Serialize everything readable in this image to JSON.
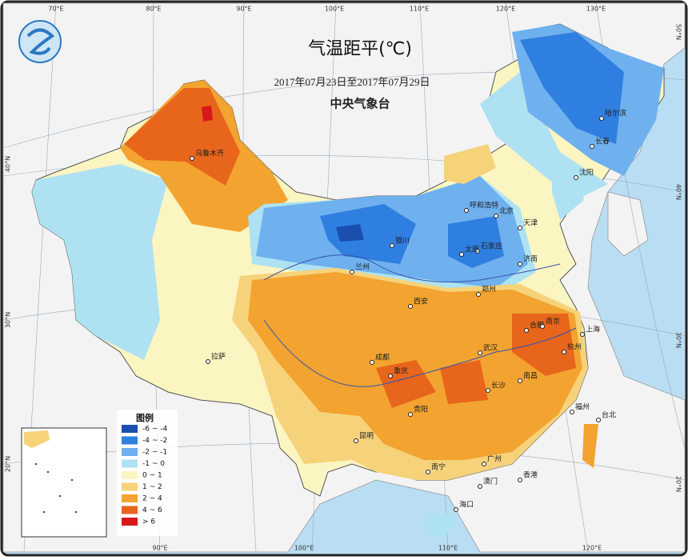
{
  "title": "气温距平(℃)",
  "date_range": "2017年07月23日至2017年07月29日",
  "source": "中央气象台",
  "legend": {
    "title": "图例",
    "items": [
      {
        "label": "-6 ~ -4",
        "color": "#1a4fb0"
      },
      {
        "label": "-4 ~ -2",
        "color": "#2f7fe0"
      },
      {
        "label": "-2 ~ -1",
        "color": "#6fb0ee"
      },
      {
        "label": "-1 ~ 0",
        "color": "#aee2f2"
      },
      {
        "label": "0 ~ 1",
        "color": "#fbf5c2"
      },
      {
        "label": "1 ~ 2",
        "color": "#f6d27a"
      },
      {
        "label": "2 ~ 4",
        "color": "#f2a330"
      },
      {
        "label": "4 ~ 6",
        "color": "#e8651c"
      },
      {
        "label": "> 6",
        "color": "#d7191c"
      }
    ]
  },
  "longitudes": [
    "70°E",
    "80°E",
    "90°E",
    "100°E",
    "110°E",
    "120°E",
    "130°E"
  ],
  "latitudes": [
    "50°N",
    "40°N",
    "30°N",
    "20°N"
  ],
  "cities": [
    "乌鲁木齐",
    "哈尔滨",
    "长春",
    "沈阳",
    "呼和浩特",
    "北京",
    "天津",
    "石家庄",
    "太原",
    "银川",
    "济南",
    "郑州",
    "西安",
    "兰州",
    "成都",
    "重庆",
    "武汉",
    "合肥",
    "南京",
    "上海",
    "杭州",
    "长沙",
    "南昌",
    "贵阳",
    "昆明",
    "南宁",
    "广州",
    "福州",
    "台北",
    "香港",
    "澳门",
    "海口",
    "拉萨"
  ]
}
